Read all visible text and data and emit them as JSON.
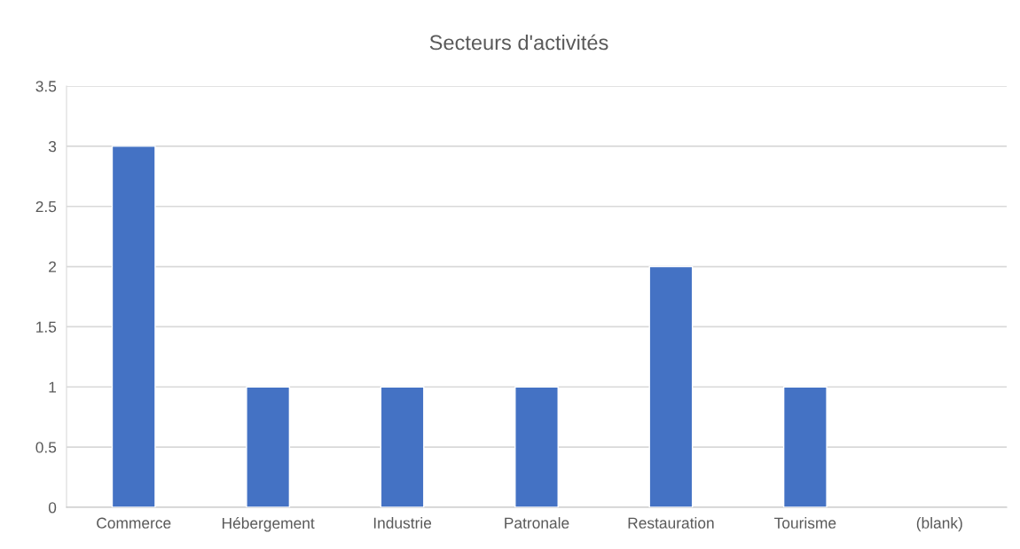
{
  "chart_data": {
    "type": "bar",
    "title": "Secteurs d'activités",
    "categories": [
      "Commerce",
      "Hébergement",
      "Industrie",
      "Patronale",
      "Restauration",
      "Tourisme",
      "(blank)"
    ],
    "values": [
      3,
      1,
      1,
      1,
      2,
      1,
      null
    ],
    "color": "#4472c4",
    "ylim": [
      0,
      3.5
    ],
    "yticks": [
      0,
      0.5,
      1,
      1.5,
      2,
      2.5,
      3,
      3.5
    ],
    "grid": "y",
    "legend": false
  }
}
